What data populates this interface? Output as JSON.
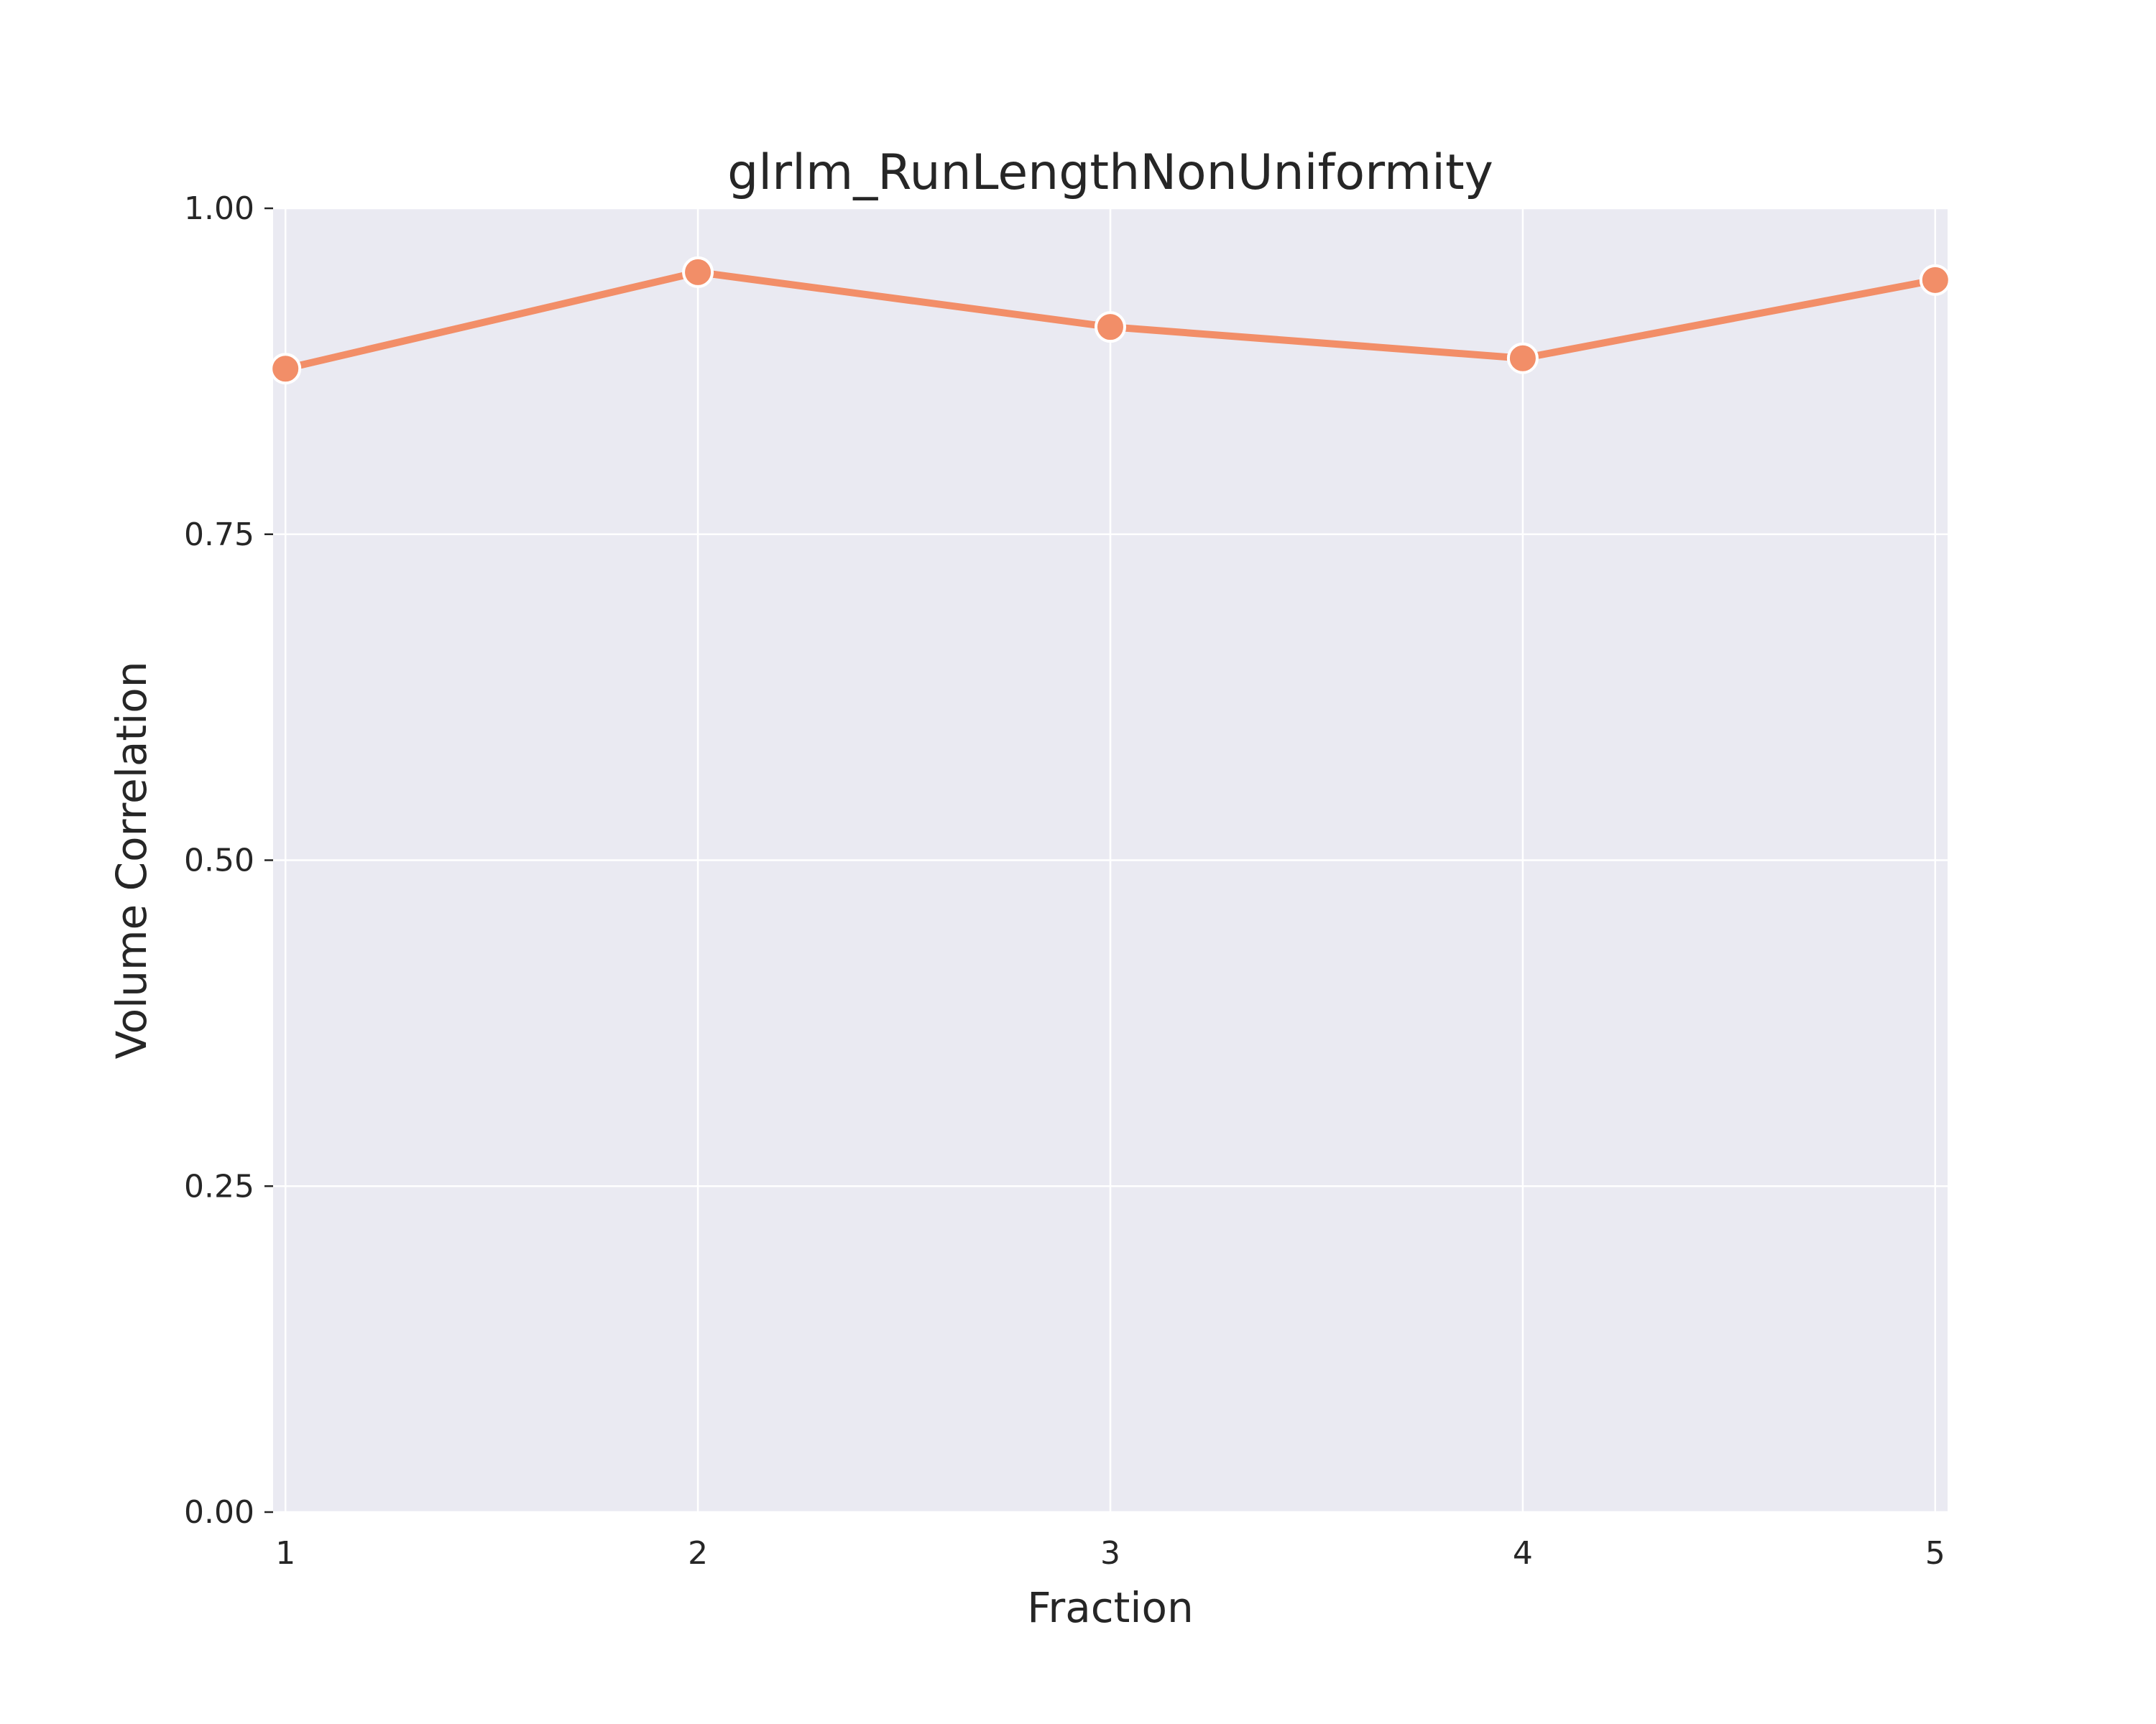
{
  "chart_data": {
    "type": "line",
    "title": "glrlm_RunLengthNonUniformity",
    "xlabel": "Fraction",
    "ylabel": "Volume Correlation",
    "x": [
      1,
      2,
      3,
      4,
      5
    ],
    "x_tick_labels": [
      "1",
      "2",
      "3",
      "4",
      "5"
    ],
    "y_ticks": [
      0.0,
      0.25,
      0.5,
      0.75,
      1.0
    ],
    "y_tick_labels": [
      "0.00",
      "0.25",
      "0.50",
      "0.75",
      "1.00"
    ],
    "xlim": [
      0.97,
      5.03
    ],
    "ylim": [
      0.0,
      1.0
    ],
    "grid": true,
    "series": [
      {
        "values": [
          0.877,
          0.951,
          0.909,
          0.885,
          0.945
        ]
      }
    ],
    "colors": {
      "series": "#f28e68",
      "background": "#eaeaf2",
      "grid": "#ffffff",
      "marker_edge": "#ffffff"
    }
  }
}
